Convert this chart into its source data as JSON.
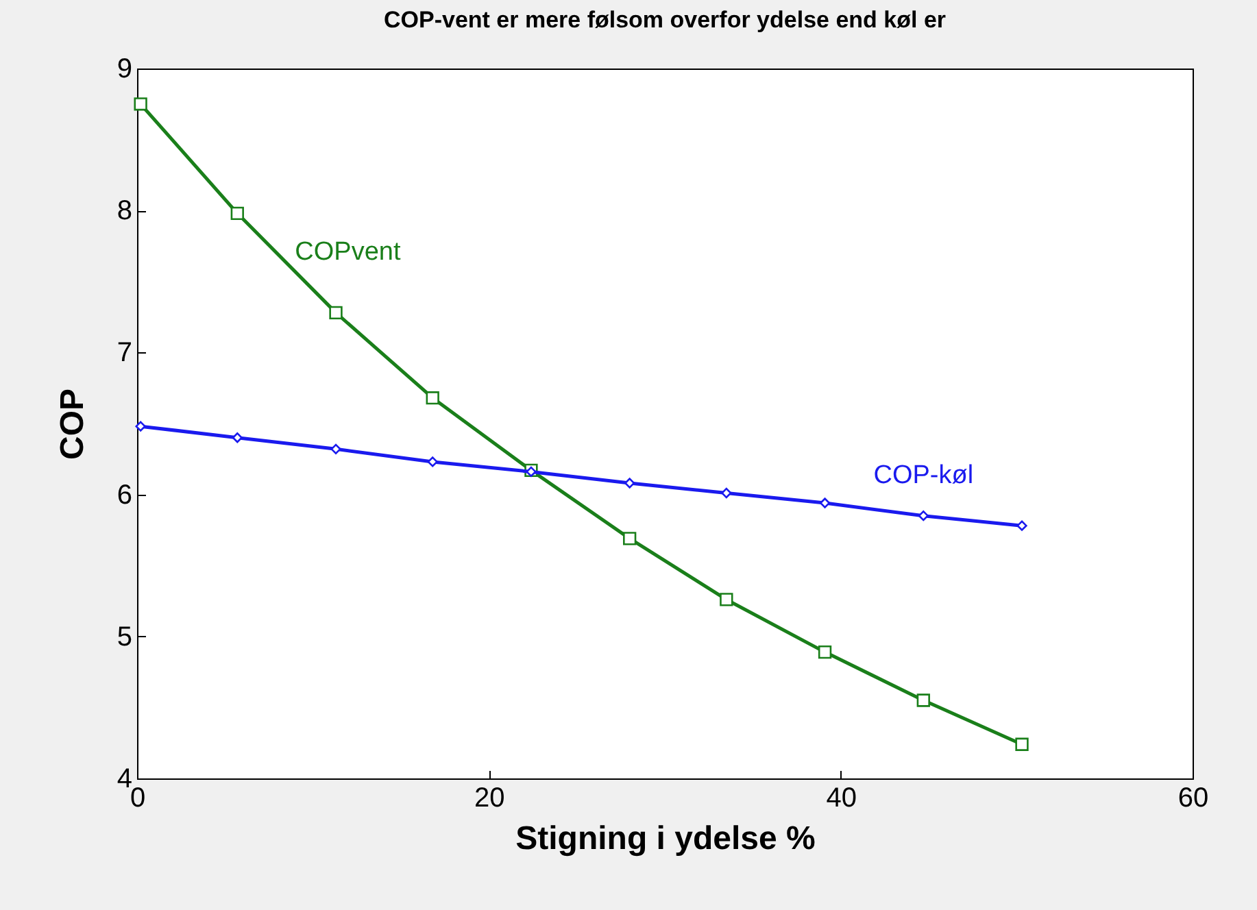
{
  "chart_data": {
    "type": "line",
    "title": "COP-vent er mere følsom overfor ydelse end køl er",
    "xlabel": "Stigning i ydelse  %",
    "ylabel": "COP",
    "x": [
      0.2,
      5.7,
      11.3,
      16.8,
      22.4,
      28,
      33.5,
      39.1,
      44.7,
      50.3
    ],
    "series": [
      {
        "name": "COPvent",
        "color": "#1a7f1a",
        "marker": "square",
        "values": [
          8.75,
          7.98,
          7.28,
          6.68,
          6.17,
          5.69,
          5.26,
          4.89,
          4.55,
          4.24
        ]
      },
      {
        "name": "COP-køl",
        "color": "#1a1aee",
        "marker": "diamond",
        "values": [
          6.48,
          6.4,
          6.32,
          6.23,
          6.16,
          6.08,
          6.01,
          5.94,
          5.85,
          5.78
        ]
      }
    ],
    "xlim": [
      0,
      60
    ],
    "xticks": [
      0,
      20,
      40,
      60
    ],
    "ylim": [
      4,
      9
    ],
    "yticks": [
      4,
      5,
      6,
      7,
      8,
      9
    ],
    "grid": false,
    "legend": false
  }
}
